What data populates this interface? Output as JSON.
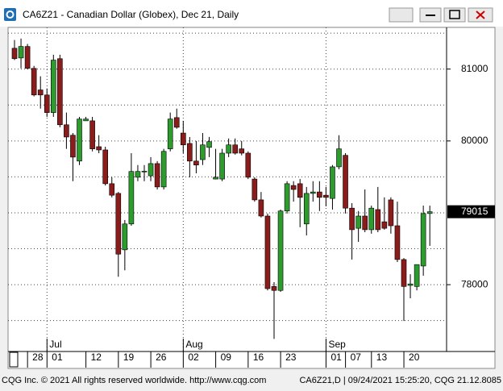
{
  "window_title": "CA6Z21 - Canadian Dollar (Globex), Dec 21, Daily",
  "chart_data": {
    "type": "candlestick",
    "categories": [
      null,
      null,
      null,
      "28",
      null,
      null,
      "01",
      null,
      null,
      null,
      null,
      null,
      "12",
      null,
      null,
      null,
      null,
      "19",
      null,
      null,
      null,
      null,
      "26",
      null,
      null,
      null,
      null,
      "02",
      null,
      null,
      null,
      null,
      "09",
      null,
      null,
      null,
      null,
      "16",
      null,
      null,
      null,
      null,
      "23",
      null,
      null,
      null,
      null,
      null,
      null,
      "01",
      null,
      null,
      "07",
      null,
      null,
      null,
      "13",
      null,
      null,
      null,
      null,
      "20",
      null,
      null,
      null
    ],
    "months": [
      null,
      null,
      null,
      null,
      null,
      null,
      "Jul",
      null,
      null,
      null,
      null,
      null,
      null,
      null,
      null,
      null,
      null,
      null,
      null,
      null,
      null,
      null,
      null,
      null,
      null,
      null,
      null,
      "Aug",
      null,
      null,
      null,
      null,
      null,
      null,
      null,
      null,
      null,
      null,
      null,
      null,
      null,
      null,
      null,
      null,
      null,
      null,
      null,
      null,
      null,
      "Sep",
      null,
      null,
      null,
      null,
      null,
      null,
      null,
      null,
      null,
      null,
      null,
      null,
      null,
      null,
      null
    ],
    "open": [
      81290,
      81155,
      81315,
      81010,
      80710,
      80640,
      80395,
      81145,
      80225,
      80080,
      79720,
      80280,
      80280,
      79920,
      79875,
      79405,
      79270,
      78485,
      78845,
      79495,
      79575,
      79515,
      79685,
      79360,
      79890,
      80325,
      80110,
      79965,
      79720,
      79740,
      79910,
      79470,
      79470,
      79830,
      79945,
      79890,
      79830,
      79470,
      79180,
      78955,
      77975,
      77920,
      79025,
      79380,
      79405,
      78845,
      79270,
      79290,
      79245,
      79200,
      79640,
      79800,
      79065,
      78785,
      78955,
      78765,
      79045,
      78875,
      79180,
      78820,
      78350,
      77990,
      77975,
      78260,
      78990
    ],
    "high": [
      81405,
      81425,
      81350,
      81045,
      80900,
      80730,
      81200,
      81200,
      80395,
      80110,
      80335,
      80335,
      80335,
      80080,
      79920,
      79495,
      79290,
      78900,
      79830,
      79665,
      79665,
      79775,
      79720,
      79890,
      80395,
      80450,
      80280,
      80055,
      80000,
      80110,
      80055,
      79890,
      79890,
      80035,
      80035,
      80000,
      79855,
      79495,
      79290,
      78990,
      78035,
      79045,
      79440,
      79440,
      79470,
      79360,
      79440,
      79440,
      79360,
      79665,
      80080,
      79830,
      79135,
      79025,
      79325,
      79100,
      79360,
      79215,
      79215,
      79155,
      78370,
      78145,
      78280,
      79100,
      79100
    ],
    "low": [
      81125,
      81010,
      81000,
      80620,
      80450,
      80335,
      80335,
      80190,
      79890,
      79440,
      79665,
      80280,
      79855,
      79830,
      79380,
      79215,
      78110,
      78200,
      78820,
      79440,
      79440,
      79440,
      79325,
      79325,
      79855,
      80170,
      79830,
      79495,
      79550,
      79665,
      79775,
      79465,
      79440,
      79775,
      79810,
      79800,
      79470,
      79155,
      78935,
      77920,
      77245,
      77900,
      78990,
      79155,
      78800,
      78685,
      79155,
      79025,
      79090,
      79045,
      79605,
      78990,
      78350,
      78595,
      78730,
      78710,
      78730,
      78765,
      78710,
      78315,
      77495,
      77810,
      77920,
      78125,
      78540
    ],
    "close": [
      81145,
      81315,
      81010,
      80640,
      80640,
      80395,
      81125,
      80225,
      80055,
      79775,
      80305,
      80305,
      79890,
      79875,
      79405,
      79245,
      78425,
      78845,
      79575,
      79575,
      79580,
      79685,
      79360,
      79855,
      80305,
      80190,
      79945,
      79720,
      79665,
      79945,
      79990,
      79495,
      79830,
      79945,
      79830,
      79830,
      79495,
      79180,
      78955,
      77945,
      77920,
      79025,
      79405,
      79325,
      79215,
      79270,
      79290,
      79215,
      79215,
      79640,
      79890,
      79065,
      78765,
      78955,
      78765,
      79065,
      78765,
      78785,
      78820,
      78350,
      77975,
      78010,
      78280,
      78990,
      79015
    ],
    "up_color": "#2e9b2e",
    "down_color": "#8b1c1c",
    "ylim": [
      77070,
      81580
    ],
    "yticks": [
      78000,
      80000,
      81000
    ],
    "minor_yticks": [
      77500,
      78500,
      79000,
      79500,
      80500,
      81500
    ],
    "last_price": 79015,
    "grid": true
  },
  "footer": {
    "left": "CQG Inc. © 2021 All rights reserved worldwide. http://www.cqg.com",
    "right": "CA6Z21,D | 09/24/2021 15:25:20, CQG 21.12.8085"
  }
}
